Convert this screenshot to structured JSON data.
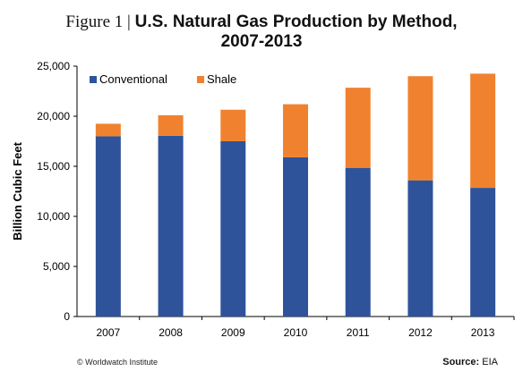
{
  "title": {
    "figure_label": "Figure 1 | ",
    "line1": "U.S. Natural Gas Production by Method,",
    "line2": "2007-2013"
  },
  "footer": {
    "credit": "© Worldwatch Institute",
    "source_label": "Source:",
    "source_value": "EIA"
  },
  "colors": {
    "conventional": "#2E539B",
    "shale": "#F0822F"
  },
  "chart_data": {
    "type": "bar",
    "stacked": true,
    "categories": [
      "2007",
      "2008",
      "2009",
      "2010",
      "2011",
      "2012",
      "2013"
    ],
    "series": [
      {
        "name": "Conventional",
        "values": [
          18000,
          18050,
          17500,
          15900,
          14850,
          13600,
          12850
        ]
      },
      {
        "name": "Shale",
        "values": [
          1250,
          2050,
          3150,
          5300,
          8000,
          10400,
          11400
        ]
      }
    ],
    "title": "U.S. Natural Gas Production by Method, 2007-2013",
    "xlabel": "",
    "ylabel": "Billion Cubic Feet",
    "ylim": [
      0,
      25000
    ],
    "yticks": [
      "0",
      "5,000",
      "10,000",
      "15,000",
      "20,000",
      "25,000"
    ],
    "ytick_values": [
      0,
      5000,
      10000,
      15000,
      20000,
      25000
    ],
    "legend_position": "top-left",
    "grid": false
  }
}
